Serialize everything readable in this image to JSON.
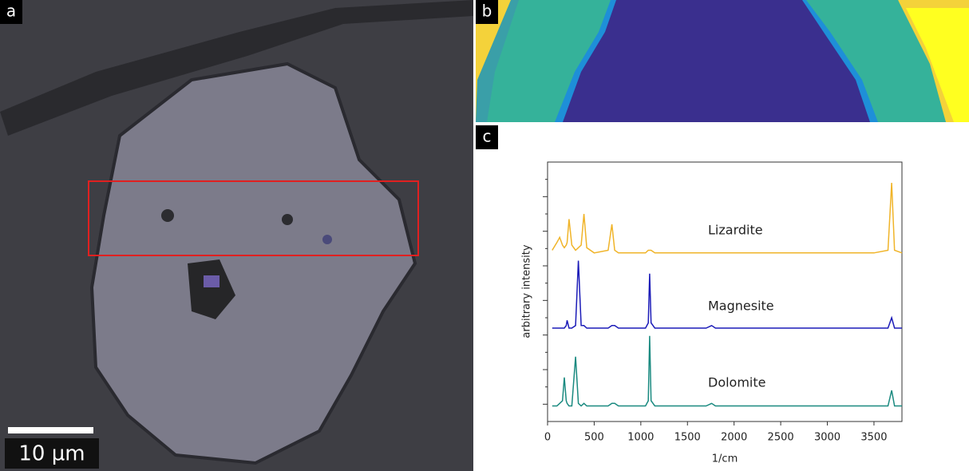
{
  "panels": {
    "a": "a",
    "b": "b",
    "c": "c"
  },
  "scale_bar": "10 µm",
  "chart_data": {
    "type": "line",
    "xlabel": "1/cm",
    "ylabel": "arbitrary intensity",
    "xlim": [
      0,
      3800
    ],
    "xticks": [
      0,
      500,
      1000,
      1500,
      2000,
      2500,
      3000,
      3500
    ],
    "ylim": [
      0,
      10
    ],
    "x": [
      50,
      100,
      130,
      160,
      180,
      200,
      210,
      230,
      260,
      300,
      330,
      360,
      390,
      420,
      500,
      650,
      690,
      720,
      760,
      900,
      1050,
      1080,
      1095,
      1110,
      1150,
      1400,
      1700,
      1760,
      1800,
      2500,
      3000,
      3500,
      3650,
      3690,
      3720,
      3800
    ],
    "series": [
      {
        "name": "Lizardite",
        "color": "#f0b429",
        "values": [
          6.6,
          6.9,
          7.1,
          6.8,
          6.7,
          6.8,
          6.9,
          7.8,
          6.8,
          6.6,
          6.7,
          6.8,
          8.0,
          6.7,
          6.5,
          6.6,
          7.6,
          6.6,
          6.5,
          6.5,
          6.5,
          6.6,
          6.6,
          6.6,
          6.5,
          6.5,
          6.5,
          6.5,
          6.5,
          6.5,
          6.5,
          6.5,
          6.6,
          9.2,
          6.6,
          6.5
        ]
      },
      {
        "name": "Magnesite",
        "color": "#1c1cb8",
        "values": [
          3.6,
          3.6,
          3.6,
          3.6,
          3.6,
          3.7,
          3.9,
          3.6,
          3.6,
          3.7,
          6.2,
          3.7,
          3.7,
          3.6,
          3.6,
          3.6,
          3.7,
          3.7,
          3.6,
          3.6,
          3.6,
          3.8,
          5.7,
          3.8,
          3.6,
          3.6,
          3.6,
          3.7,
          3.6,
          3.6,
          3.6,
          3.6,
          3.6,
          4.0,
          3.6,
          3.6
        ]
      },
      {
        "name": "Dolomite",
        "color": "#1a8a80",
        "values": [
          0.6,
          0.6,
          0.7,
          0.8,
          1.7,
          0.8,
          0.7,
          0.6,
          0.6,
          2.5,
          0.7,
          0.6,
          0.7,
          0.6,
          0.6,
          0.6,
          0.7,
          0.7,
          0.6,
          0.6,
          0.6,
          0.8,
          3.3,
          0.8,
          0.6,
          0.6,
          0.6,
          0.7,
          0.6,
          0.6,
          0.6,
          0.6,
          0.6,
          1.2,
          0.6,
          0.6
        ]
      }
    ]
  }
}
